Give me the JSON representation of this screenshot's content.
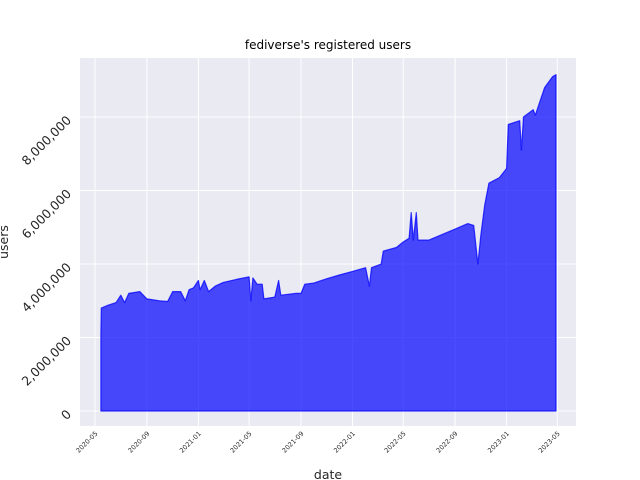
{
  "chart_data": {
    "type": "area",
    "title": "fediverse's registered users",
    "xlabel": "date",
    "ylabel": "users",
    "ylim": [
      -400000,
      9700000
    ],
    "xlim": [
      "2020-04",
      "2023-05-15"
    ],
    "grid": true,
    "legend": null,
    "style": {
      "background": "#eaeaf2",
      "grid_color": "#ffffff",
      "fill_color": "#0000ff",
      "fill_alpha": 0.7,
      "line_color": "#0000ff"
    },
    "x_ticks": [
      "2020-05",
      "2020-09",
      "2021-01",
      "2021-05",
      "2021-09",
      "2022-01",
      "2022-05",
      "2022-09",
      "2023-01",
      "2023-05"
    ],
    "y_ticks": [
      0,
      2000000,
      4000000,
      6000000,
      8000000
    ],
    "y_tick_labels": [
      "0",
      "2,000,000",
      "4,000,000",
      "6,000,000",
      "8,000,000"
    ],
    "series": [
      {
        "name": "users",
        "points": [
          {
            "date": "2020-05-15",
            "users": 2100000
          },
          {
            "date": "2020-05-16",
            "users": 2800000
          },
          {
            "date": "2020-06-01",
            "users": 2880000
          },
          {
            "date": "2020-06-20",
            "users": 2950000
          },
          {
            "date": "2020-07-01",
            "users": 3150000
          },
          {
            "date": "2020-07-10",
            "users": 2950000
          },
          {
            "date": "2020-07-20",
            "users": 3200000
          },
          {
            "date": "2020-08-15",
            "users": 3250000
          },
          {
            "date": "2020-09-01",
            "users": 3050000
          },
          {
            "date": "2020-10-01",
            "users": 3000000
          },
          {
            "date": "2020-10-20",
            "users": 2980000
          },
          {
            "date": "2020-11-01",
            "users": 3250000
          },
          {
            "date": "2020-11-20",
            "users": 3250000
          },
          {
            "date": "2020-12-01",
            "users": 3000000
          },
          {
            "date": "2020-12-10",
            "users": 3300000
          },
          {
            "date": "2020-12-20",
            "users": 3350000
          },
          {
            "date": "2021-01-01",
            "users": 3550000
          },
          {
            "date": "2021-01-05",
            "users": 3300000
          },
          {
            "date": "2021-01-15",
            "users": 3550000
          },
          {
            "date": "2021-01-25",
            "users": 3250000
          },
          {
            "date": "2021-02-10",
            "users": 3400000
          },
          {
            "date": "2021-03-01",
            "users": 3500000
          },
          {
            "date": "2021-04-01",
            "users": 3580000
          },
          {
            "date": "2021-05-01",
            "users": 3650000
          },
          {
            "date": "2021-05-05",
            "users": 3000000
          },
          {
            "date": "2021-05-10",
            "users": 3620000
          },
          {
            "date": "2021-05-20",
            "users": 3450000
          },
          {
            "date": "2021-06-01",
            "users": 3450000
          },
          {
            "date": "2021-06-05",
            "users": 3050000
          },
          {
            "date": "2021-07-01",
            "users": 3100000
          },
          {
            "date": "2021-07-10",
            "users": 3550000
          },
          {
            "date": "2021-07-15",
            "users": 3150000
          },
          {
            "date": "2021-08-20",
            "users": 3200000
          },
          {
            "date": "2021-09-01",
            "users": 3200000
          },
          {
            "date": "2021-09-10",
            "users": 3450000
          },
          {
            "date": "2021-10-01",
            "users": 3480000
          },
          {
            "date": "2021-11-01",
            "users": 3600000
          },
          {
            "date": "2021-12-01",
            "users": 3700000
          },
          {
            "date": "2022-01-01",
            "users": 3800000
          },
          {
            "date": "2022-02-01",
            "users": 3900000
          },
          {
            "date": "2022-02-10",
            "users": 3400000
          },
          {
            "date": "2022-02-15",
            "users": 3900000
          },
          {
            "date": "2022-03-10",
            "users": 4000000
          },
          {
            "date": "2022-03-15",
            "users": 4350000
          },
          {
            "date": "2022-04-15",
            "users": 4450000
          },
          {
            "date": "2022-05-01",
            "users": 4600000
          },
          {
            "date": "2022-05-15",
            "users": 4700000
          },
          {
            "date": "2022-05-20",
            "users": 5400000
          },
          {
            "date": "2022-05-25",
            "users": 4650000
          },
          {
            "date": "2022-06-01",
            "users": 5400000
          },
          {
            "date": "2022-06-05",
            "users": 4650000
          },
          {
            "date": "2022-07-01",
            "users": 4650000
          },
          {
            "date": "2022-08-01",
            "users": 4800000
          },
          {
            "date": "2022-09-01",
            "users": 4950000
          },
          {
            "date": "2022-10-01",
            "users": 5100000
          },
          {
            "date": "2022-10-15",
            "users": 5050000
          },
          {
            "date": "2022-10-25",
            "users": 4000000
          },
          {
            "date": "2022-11-01",
            "users": 4800000
          },
          {
            "date": "2022-11-10",
            "users": 5600000
          },
          {
            "date": "2022-11-20",
            "users": 6200000
          },
          {
            "date": "2022-12-15",
            "users": 6350000
          },
          {
            "date": "2023-01-01",
            "users": 6600000
          },
          {
            "date": "2023-01-05",
            "users": 7800000
          },
          {
            "date": "2023-02-01",
            "users": 7900000
          },
          {
            "date": "2023-02-05",
            "users": 7100000
          },
          {
            "date": "2023-02-10",
            "users": 8000000
          },
          {
            "date": "2023-03-05",
            "users": 8200000
          },
          {
            "date": "2023-03-10",
            "users": 8050000
          },
          {
            "date": "2023-04-01",
            "users": 8800000
          },
          {
            "date": "2023-04-20",
            "users": 9100000
          },
          {
            "date": "2023-04-28",
            "users": 9150000
          }
        ]
      }
    ]
  }
}
